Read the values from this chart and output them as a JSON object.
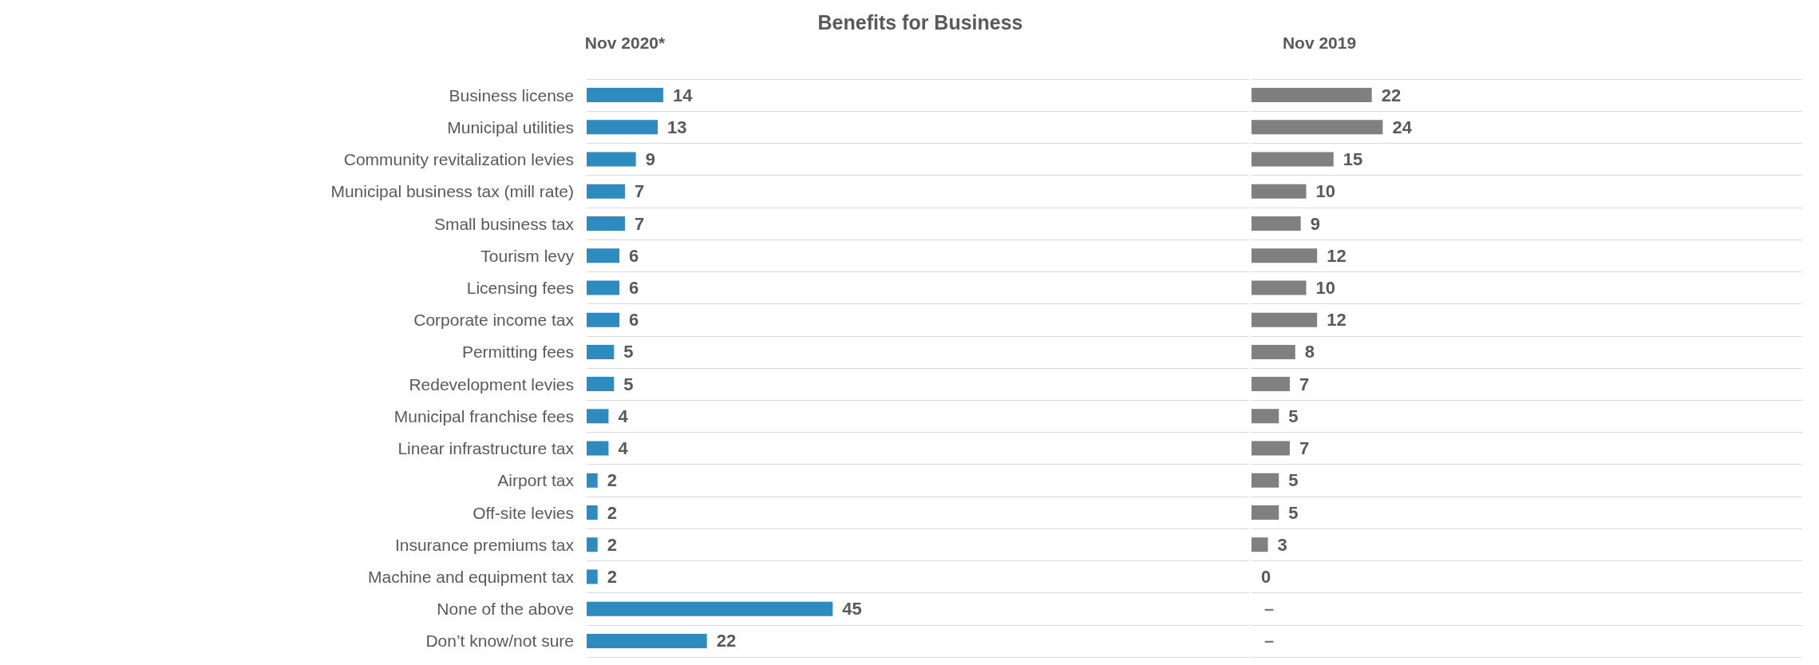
{
  "chart_data": [
    {
      "type": "bar",
      "title": "Benefits for Business",
      "subtitle": "Nov 2020*",
      "orientation": "horizontal",
      "categories": [
        "Business license",
        "Municipal utilities",
        "Community revitalization levies",
        "Municipal business tax (mill rate)",
        "Small business tax",
        "Tourism levy",
        "Licensing fees",
        "Corporate income tax",
        "Permitting fees",
        "Redevelopment levies",
        "Municipal franchise fees",
        "Linear infrastructure tax",
        "Airport tax",
        "Off-site levies",
        "Insurance premiums tax",
        "Machine and equipment tax",
        "None of the above",
        "Don’t know/not sure"
      ],
      "series": [
        {
          "color": "#2e8bc0",
          "values": [
            14,
            13,
            9,
            7,
            7,
            6,
            6,
            6,
            5,
            5,
            4,
            4,
            2,
            2,
            2,
            2,
            45,
            22
          ]
        }
      ],
      "data_labels": true,
      "grid": "y",
      "tick_labels": "y"
    },
    {
      "type": "bar",
      "title": "Nov 2019",
      "orientation": "horizontal",
      "categories": [
        null,
        null,
        null,
        null,
        null,
        null,
        null,
        null,
        null,
        null,
        null,
        null,
        null,
        null,
        null,
        null,
        null,
        null
      ],
      "series": [
        {
          "color": "#808080",
          "values": [
            22,
            24,
            15,
            10,
            9,
            12,
            10,
            12,
            8,
            7,
            5,
            7,
            5,
            5,
            3,
            0,
            null,
            null
          ],
          "value_labels": [
            "22",
            "24",
            "15",
            "10",
            "9",
            "12",
            "10",
            "12",
            "8",
            "7",
            "5",
            "7",
            "5",
            "5",
            "3",
            "0",
            "–",
            "–"
          ]
        }
      ],
      "grid": "y",
      "tick_labels": false
    }
  ]
}
